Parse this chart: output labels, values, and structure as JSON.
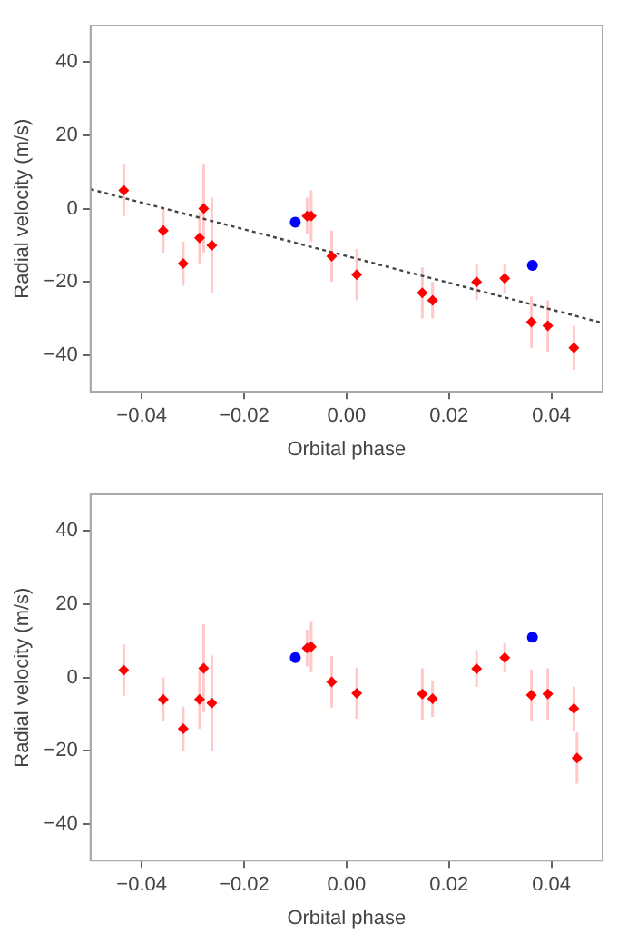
{
  "chart_data": [
    {
      "type": "scatter",
      "xlabel": "Orbital phase",
      "ylabel": "Radial velocity (m/s)",
      "xlim": [
        -0.05,
        0.05
      ],
      "ylim": [
        -50,
        50
      ],
      "xticks": [
        {
          "value": -0.04,
          "label": "−0.04"
        },
        {
          "value": -0.02,
          "label": "−0.02"
        },
        {
          "value": 0,
          "label": "0.00"
        },
        {
          "value": 0.02,
          "label": "0.02"
        },
        {
          "value": 0.04,
          "label": "0.04"
        }
      ],
      "yticks": [
        -40,
        -20,
        0,
        20,
        40
      ],
      "grid": false,
      "legend": false,
      "series": [
        {
          "color": "#ff0000",
          "marker": "diamond",
          "x": [
            -0.0435,
            -0.0358,
            -0.0319,
            -0.0287,
            -0.0279,
            -0.0263,
            -0.0077,
            -0.0069,
            -0.0029,
            0.002,
            0.0148,
            0.0168,
            0.0254,
            0.0309,
            0.0361,
            0.0393,
            0.0444
          ],
          "values": [
            5,
            -6,
            -15,
            -8,
            0,
            -10,
            -2,
            -2,
            -13,
            -18,
            -23,
            -25,
            -20,
            -19,
            -31,
            -32,
            -38
          ],
          "errors": [
            7,
            6,
            6,
            7,
            12,
            13,
            5,
            7,
            7,
            7,
            7,
            5,
            5,
            4,
            7,
            7,
            6
          ]
        },
        {
          "color": "#0000ff",
          "marker": "circle",
          "x": [
            -0.01,
            0.0363
          ],
          "values": [
            -3.7,
            -15.5
          ]
        },
        {
          "type": "line",
          "color": "#444444",
          "line_style": "dotted",
          "marker": "none",
          "x": [
            -0.05,
            0.05
          ],
          "values": [
            5.3,
            -31.2
          ]
        }
      ]
    },
    {
      "type": "scatter",
      "xlabel": "Orbital phase",
      "ylabel": "Radial velocity (m/s)",
      "xlim": [
        -0.05,
        0.05
      ],
      "ylim": [
        -50,
        50
      ],
      "xticks": [
        {
          "value": -0.04,
          "label": "−0.04"
        },
        {
          "value": -0.02,
          "label": "−0.02"
        },
        {
          "value": 0,
          "label": "0.00"
        },
        {
          "value": 0.02,
          "label": "0.02"
        },
        {
          "value": 0.04,
          "label": "0.04"
        }
      ],
      "yticks": [
        -40,
        -20,
        0,
        20,
        40
      ],
      "grid": false,
      "legend": false,
      "series": [
        {
          "color": "#ff0000",
          "marker": "diamond",
          "x": [
            -0.0435,
            -0.0358,
            -0.0319,
            -0.0287,
            -0.0279,
            -0.0263,
            -0.0077,
            -0.0069,
            -0.0029,
            0.002,
            0.0148,
            0.0168,
            0.0254,
            0.0309,
            0.0361,
            0.0393,
            0.0444,
            0.045
          ],
          "values": [
            2,
            -6,
            -14,
            -6,
            2.5,
            -7,
            8,
            8.4,
            -1.2,
            -4.3,
            -4.5,
            -5.8,
            2.4,
            5.4,
            -4.8,
            -4.5,
            -8.5,
            -22
          ],
          "errors": [
            7,
            6,
            6,
            8,
            12,
            13,
            5,
            7,
            7,
            7,
            7,
            5,
            5,
            4,
            7,
            7,
            6,
            7
          ]
        },
        {
          "color": "#0000ff",
          "marker": "circle",
          "x": [
            -0.01,
            0.0363
          ],
          "values": [
            5.4,
            11
          ]
        }
      ]
    }
  ]
}
